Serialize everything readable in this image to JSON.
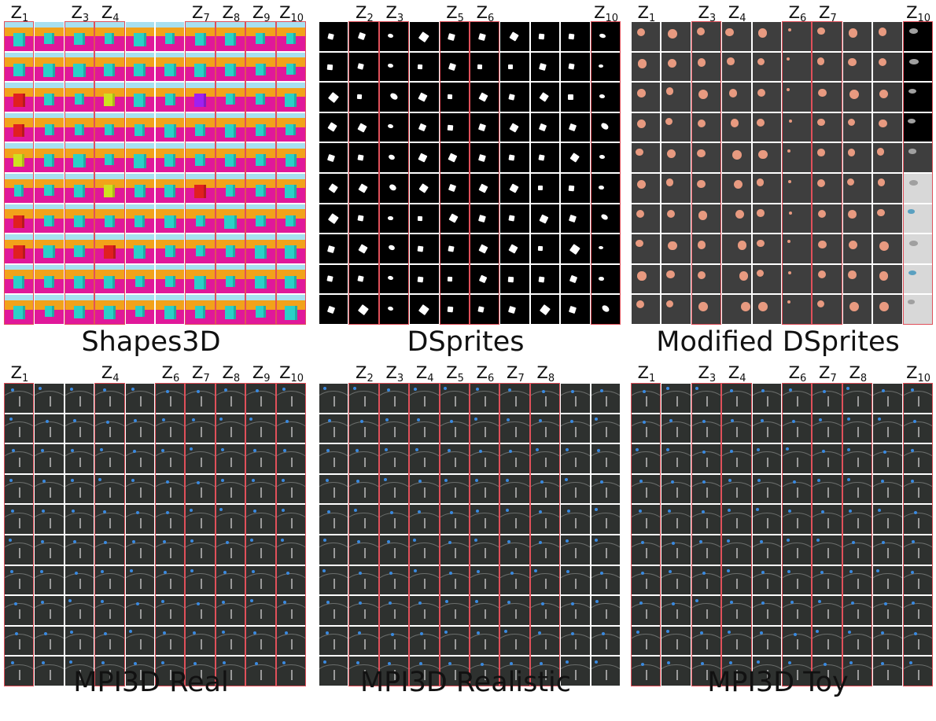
{
  "panels": [
    {
      "id": "shapes3d",
      "title": "Shapes3D",
      "style": "shapes3d",
      "highlighted_columns": [
        1,
        3,
        4,
        7,
        8,
        9,
        10
      ],
      "labels": [
        {
          "col": 1,
          "base": "Z",
          "sub": "1"
        },
        {
          "col": 3,
          "base": "Z",
          "sub": "3"
        },
        {
          "col": 4,
          "base": "Z",
          "sub": "4"
        },
        {
          "col": 7,
          "base": "Z",
          "sub": "7"
        },
        {
          "col": 8,
          "base": "Z",
          "sub": "8"
        },
        {
          "col": 9,
          "base": "Z",
          "sub": "9"
        },
        {
          "col": 10,
          "base": "Z",
          "sub": "10"
        }
      ]
    },
    {
      "id": "dsprites",
      "title": "DSprites",
      "style": "dsprites",
      "highlighted_columns": [
        2,
        3,
        5,
        6,
        10
      ],
      "labels": [
        {
          "col": 2,
          "base": "Z",
          "sub": "2"
        },
        {
          "col": 3,
          "base": "Z",
          "sub": "3"
        },
        {
          "col": 5,
          "base": "Z",
          "sub": "5"
        },
        {
          "col": 6,
          "base": "Z",
          "sub": "6"
        },
        {
          "col": 10,
          "base": "Z",
          "sub": "10"
        }
      ]
    },
    {
      "id": "modified-dsprites",
      "title": "Modified DSprites",
      "style": "moddsprites",
      "highlighted_columns": [
        3,
        6,
        7,
        10
      ],
      "labels": [
        {
          "col": 1,
          "base": "Z",
          "sub": "1"
        },
        {
          "col": 3,
          "base": "Z",
          "sub": "3"
        },
        {
          "col": 4,
          "base": "Z",
          "sub": "4"
        },
        {
          "col": 6,
          "base": "Z",
          "sub": "6"
        },
        {
          "col": 7,
          "base": "Z",
          "sub": "7"
        },
        {
          "col": 10,
          "base": "Z",
          "sub": "10"
        }
      ]
    },
    {
      "id": "mpi3d-real",
      "title": "MPI3D Real",
      "style": "mpi",
      "highlighted_columns": [
        1,
        4,
        6,
        7,
        8,
        9,
        10
      ],
      "labels": [
        {
          "col": 1,
          "base": "Z",
          "sub": "1"
        },
        {
          "col": 4,
          "base": "Z",
          "sub": "4"
        },
        {
          "col": 6,
          "base": "Z",
          "sub": "6"
        },
        {
          "col": 7,
          "base": "Z",
          "sub": "7"
        },
        {
          "col": 8,
          "base": "Z",
          "sub": "8"
        },
        {
          "col": 9,
          "base": "Z",
          "sub": "9"
        },
        {
          "col": 10,
          "base": "Z",
          "sub": "10"
        }
      ]
    },
    {
      "id": "mpi3d-realistic",
      "title": "MPI3D Realistic",
      "style": "mpi",
      "highlighted_columns": [
        2,
        3,
        4,
        5,
        6,
        7,
        8
      ],
      "labels": [
        {
          "col": 2,
          "base": "Z",
          "sub": "2"
        },
        {
          "col": 3,
          "base": "Z",
          "sub": "3"
        },
        {
          "col": 4,
          "base": "Z",
          "sub": "4"
        },
        {
          "col": 5,
          "base": "Z",
          "sub": "5"
        },
        {
          "col": 6,
          "base": "Z",
          "sub": "6"
        },
        {
          "col": 7,
          "base": "Z",
          "sub": "7"
        },
        {
          "col": 8,
          "base": "Z",
          "sub": "8"
        }
      ]
    },
    {
      "id": "mpi3d-toy",
      "title": "MPI3D Toy",
      "style": "mpitoy",
      "highlighted_columns": [
        1,
        3,
        4,
        6,
        7,
        8,
        10
      ],
      "labels": [
        {
          "col": 1,
          "base": "Z",
          "sub": "1"
        },
        {
          "col": 3,
          "base": "Z",
          "sub": "3"
        },
        {
          "col": 4,
          "base": "Z",
          "sub": "4"
        },
        {
          "col": 6,
          "base": "Z",
          "sub": "6"
        },
        {
          "col": 7,
          "base": "Z",
          "sub": "7"
        },
        {
          "col": 8,
          "base": "Z",
          "sub": "8"
        },
        {
          "col": 10,
          "base": "Z",
          "sub": "10"
        }
      ]
    }
  ],
  "colors": {
    "highlight": "#e0505a",
    "shapes3d_floor": "#e0189a",
    "shapes3d_wall": "#f2a21a",
    "shapes3d_sky": "#a8e0f0",
    "shapes3d_object": "#2ad0c8",
    "dsprites_bg": "#000000",
    "dsprites_fg": "#ffffff",
    "moddsprites_bg": "#3e3e3e",
    "moddsprites_ball": "#e89a80",
    "mpi_bg": "#2e312f",
    "mpi_arm": "#9a9a9a",
    "mpi_obj": "#3a8ae0"
  },
  "grid": {
    "rows": 10,
    "cols": 10
  }
}
